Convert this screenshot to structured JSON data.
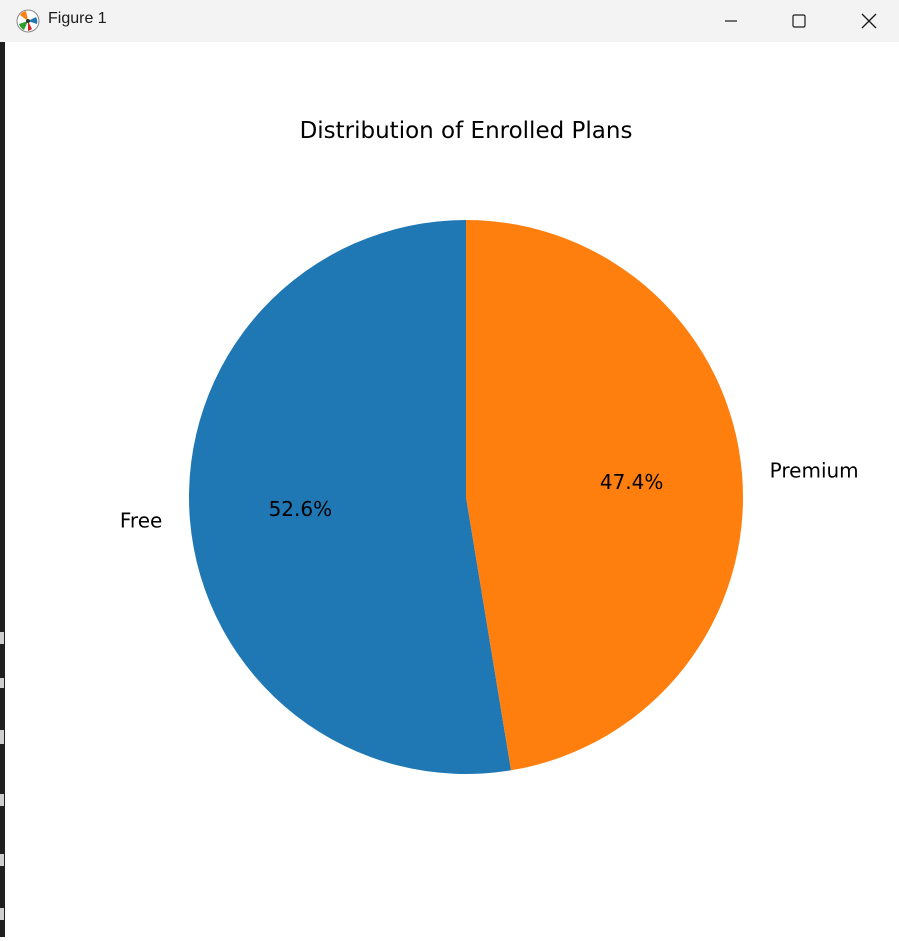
{
  "window": {
    "title": "Figure 1",
    "icons": {
      "app": "matplotlib-icon",
      "minimize": "minimize-icon",
      "maximize": "maximize-icon",
      "close": "close-icon"
    }
  },
  "chart_data": {
    "type": "pie",
    "title": "Distribution of Enrolled Plans",
    "categories": [
      "Free",
      "Premium"
    ],
    "values": [
      52.6,
      47.4
    ],
    "value_labels": [
      "52.6%",
      "47.4%"
    ],
    "colors": [
      "#1f77b4",
      "#ff7f0e"
    ],
    "start_angle_deg": 90,
    "direction": "counterclockwise",
    "legend": "none"
  }
}
